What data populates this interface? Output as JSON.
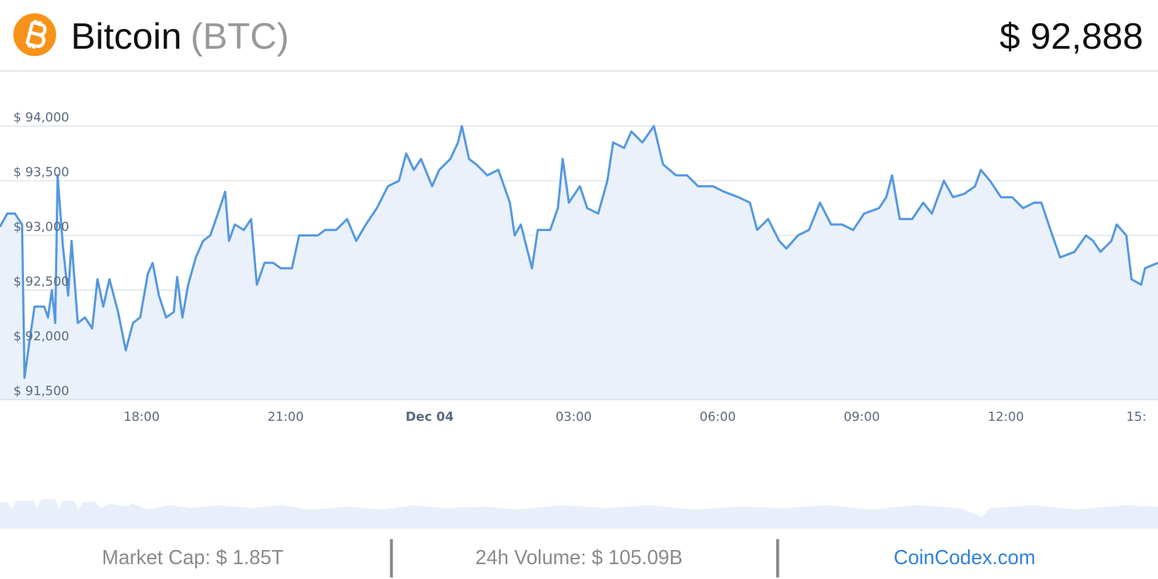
{
  "header": {
    "name": "Bitcoin",
    "symbol": "(BTC)",
    "price": "$ 92,888"
  },
  "footer": {
    "market_cap": "Market Cap: $ 1.85T",
    "volume": "24h Volume: $ 105.09B",
    "source": "CoinCodex.com"
  },
  "chart_data": {
    "type": "line",
    "x": [
      15.05,
      15.2,
      15.36,
      15.51,
      15.56,
      15.67,
      15.77,
      15.97,
      16.05,
      16.13,
      16.2,
      16.25,
      16.36,
      16.47,
      16.54,
      16.67,
      16.82,
      16.97,
      17.08,
      17.2,
      17.33,
      17.51,
      17.67,
      17.82,
      17.97,
      18.13,
      18.23,
      18.36,
      18.51,
      18.67,
      18.74,
      18.85,
      18.97,
      19.13,
      19.28,
      19.43,
      19.59,
      19.74,
      19.82,
      19.94,
      20.13,
      20.28,
      20.4,
      20.56,
      20.74,
      20.9,
      21.13,
      21.28,
      21.51,
      21.67,
      21.82,
      22.05,
      22.28,
      22.47,
      22.67,
      22.9,
      23.13,
      23.36,
      23.51,
      23.67,
      23.82,
      24.05,
      24.2,
      24.43,
      24.59,
      24.67,
      24.82,
      24.97,
      25.2,
      25.43,
      25.67,
      25.77,
      25.9,
      26.13,
      26.25,
      26.51,
      26.67,
      26.77,
      26.9,
      27.13,
      27.28,
      27.51,
      27.7,
      27.82,
      28.05,
      28.2,
      28.43,
      28.67,
      28.86,
      29.13,
      29.36,
      29.59,
      29.9,
      30.13,
      30.43,
      30.67,
      30.82,
      31.05,
      31.28,
      31.43,
      31.67,
      31.9,
      32.13,
      32.36,
      32.59,
      32.82,
      33.05,
      33.36,
      33.51,
      33.63,
      33.79,
      34.05,
      34.28,
      34.46,
      34.71,
      34.9,
      35.13,
      35.36,
      35.48,
      35.67,
      35.9,
      36.13,
      36.36,
      36.59,
      36.74,
      36.97,
      37.13,
      37.43,
      37.67,
      37.82,
      37.97,
      38.2,
      38.31,
      38.51,
      38.62,
      38.82,
      38.9,
      39.17
    ],
    "series": [
      {
        "name": "Bitcoin",
        "color": "#5598e0",
        "fill": "#eaf1fb",
        "values": [
          93080,
          93200,
          93200,
          93100,
          91700,
          92050,
          92350,
          92350,
          92250,
          92500,
          92200,
          93550,
          92900,
          92450,
          92950,
          92200,
          92250,
          92150,
          92600,
          92350,
          92600,
          92300,
          91950,
          92200,
          92250,
          92650,
          92750,
          92450,
          92250,
          92300,
          92620,
          92250,
          92550,
          92800,
          92950,
          93000,
          93200,
          93400,
          92950,
          93100,
          93050,
          93150,
          92550,
          92750,
          92750,
          92700,
          92700,
          93000,
          93000,
          93000,
          93050,
          93050,
          93150,
          92950,
          93100,
          93250,
          93450,
          93500,
          93750,
          93600,
          93700,
          93450,
          93600,
          93700,
          93850,
          94000,
          93700,
          93650,
          93550,
          93600,
          93300,
          93000,
          93100,
          92700,
          93050,
          93050,
          93250,
          93700,
          93300,
          93450,
          93250,
          93200,
          93500,
          93850,
          93800,
          93950,
          93850,
          94000,
          93650,
          93550,
          93550,
          93450,
          93450,
          93400,
          93350,
          93300,
          93050,
          93150,
          92950,
          92880,
          93000,
          93050,
          93300,
          93100,
          93100,
          93050,
          93200,
          93250,
          93350,
          93550,
          93150,
          93150,
          93300,
          93200,
          93500,
          93350,
          93380,
          93450,
          93600,
          93500,
          93350,
          93350,
          93250,
          93300,
          93300,
          93000,
          92800,
          92850,
          93000,
          92950,
          92850,
          92950,
          93100,
          93000,
          92600,
          92550,
          92700,
          92750
        ]
      }
    ],
    "xlim": [
      15.05,
      39.17
    ],
    "xticks": [
      {
        "value": 18,
        "label": "18:00"
      },
      {
        "value": 21,
        "label": "21:00"
      },
      {
        "value": 24,
        "label": "Dec 04"
      },
      {
        "value": 27,
        "label": "03:00"
      },
      {
        "value": 30,
        "label": "06:00"
      },
      {
        "value": 33,
        "label": "09:00"
      },
      {
        "value": 36,
        "label": "12:00"
      },
      {
        "value": 39,
        "label": "15:"
      }
    ],
    "ylim": [
      91500,
      94410
    ],
    "yticks": [
      {
        "value": 91500,
        "label": "$ 91,500"
      },
      {
        "value": 92000,
        "label": "$ 92,000"
      },
      {
        "value": 92500,
        "label": "$ 92,500"
      },
      {
        "value": 93000,
        "label": "$ 93,000"
      },
      {
        "value": 93500,
        "label": "$ 93,500"
      },
      {
        "value": 94000,
        "label": "$ 94,000"
      }
    ],
    "grid": true
  }
}
